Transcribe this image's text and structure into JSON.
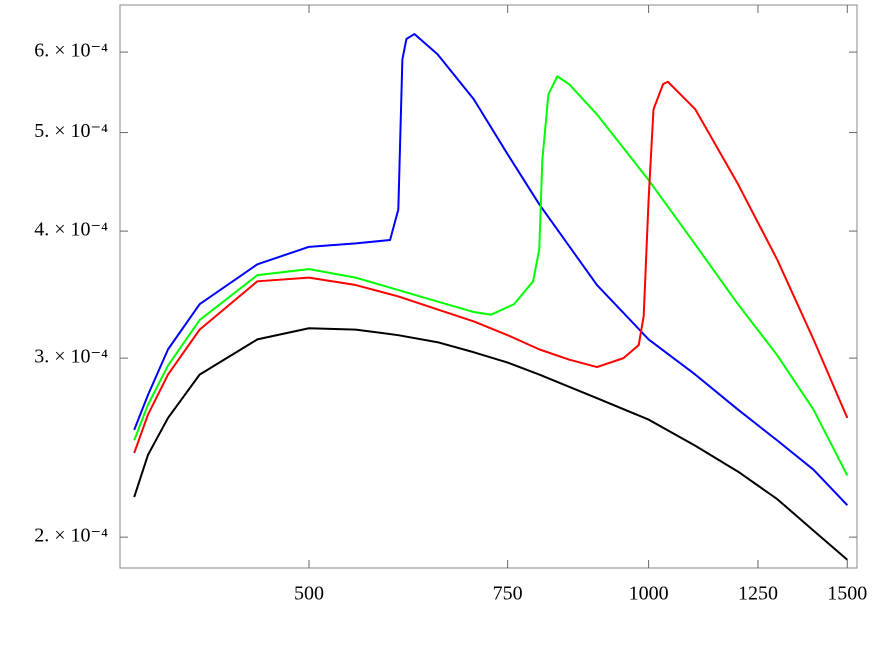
{
  "chart_data": {
    "type": "line",
    "xscale": "log",
    "yscale": "log",
    "xlim": [
      340,
      1530
    ],
    "ylim": [
      0.0001865,
      0.0006675
    ],
    "xticks": [
      500,
      750,
      1000,
      1250,
      1500
    ],
    "yticks": [
      {
        "value": 0.0002,
        "label": "2. × 10⁻⁴"
      },
      {
        "value": 0.0003,
        "label": "3. × 10⁻⁴"
      },
      {
        "value": 0.0004,
        "label": "4. × 10⁻⁴"
      },
      {
        "value": 0.0005,
        "label": "5. × 10⁻⁴"
      },
      {
        "value": 0.0006,
        "label": "6. × 10⁻⁴"
      }
    ],
    "series": [
      {
        "color": "#000000",
        "x": [
          350,
          360,
          375,
          400,
          450,
          500,
          550,
          600,
          650,
          700,
          750,
          800,
          900,
          1000,
          1100,
          1200,
          1300,
          1400,
          1500
        ],
        "values": [
          0.000219,
          0.000241,
          0.000262,
          0.000289,
          0.000313,
          0.000321,
          0.00032,
          0.000316,
          0.000311,
          0.000304,
          0.000297,
          0.000289,
          0.000274,
          0.000261,
          0.000246,
          0.000232,
          0.000218,
          0.000203,
          0.00019
        ]
      },
      {
        "color": "#0000ff",
        "x": [
          350,
          360,
          375,
          400,
          450,
          500,
          550,
          590,
          600,
          605,
          610,
          620,
          650,
          700,
          750,
          800,
          900,
          1000,
          1100,
          1200,
          1300,
          1400,
          1500
        ],
        "values": [
          0.000255,
          0.000276,
          0.000306,
          0.000339,
          0.000371,
          0.000386,
          0.000389,
          0.000392,
          0.00042,
          0.00059,
          0.000618,
          0.000625,
          0.000597,
          0.000539,
          0.000476,
          0.000425,
          0.000354,
          0.000313,
          0.000289,
          0.000267,
          0.000249,
          0.000233,
          0.000215
        ]
      },
      {
        "color": "#00ff00",
        "x": [
          350,
          360,
          375,
          400,
          450,
          500,
          550,
          600,
          650,
          700,
          725,
          760,
          790,
          800,
          805,
          815,
          830,
          850,
          900,
          1000,
          1100,
          1200,
          1300,
          1400,
          1500
        ],
        "values": [
          0.000249,
          0.00027,
          0.000295,
          0.000327,
          0.000362,
          0.000367,
          0.00036,
          0.00035,
          0.000341,
          0.000333,
          0.000331,
          0.000339,
          0.000357,
          0.000384,
          0.00047,
          0.000545,
          0.000568,
          0.000558,
          0.000521,
          0.000449,
          0.000388,
          0.000339,
          0.000302,
          0.000267,
          0.00023
        ]
      },
      {
        "color": "#ff0000",
        "x": [
          350,
          360,
          375,
          400,
          450,
          500,
          550,
          600,
          650,
          700,
          750,
          800,
          850,
          900,
          950,
          980,
          990,
          1000,
          1010,
          1030,
          1040,
          1100,
          1200,
          1300,
          1400,
          1500
        ],
        "values": [
          0.000242,
          0.000264,
          0.000289,
          0.00032,
          0.000357,
          0.00036,
          0.000354,
          0.000345,
          0.000335,
          0.000326,
          0.000316,
          0.000306,
          0.000299,
          0.000294,
          0.0003,
          0.000309,
          0.00033,
          0.00043,
          0.000527,
          0.000558,
          0.000561,
          0.000527,
          0.000445,
          0.000375,
          0.000313,
          0.000262
        ]
      }
    ]
  }
}
